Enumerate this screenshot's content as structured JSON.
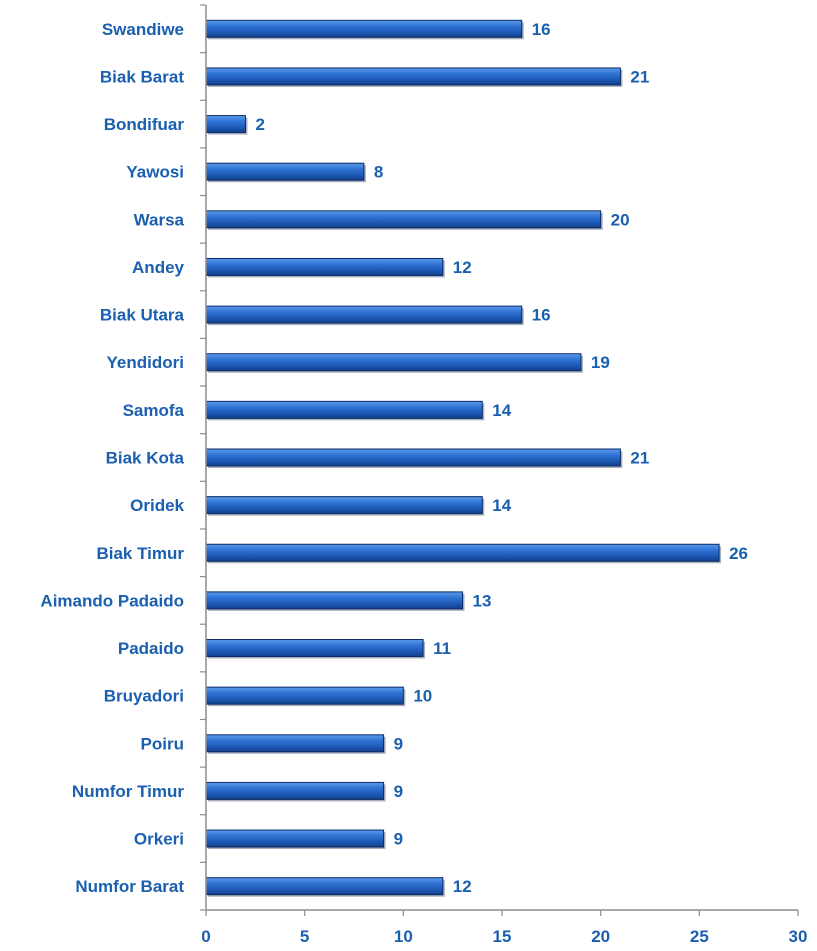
{
  "chart_data": {
    "type": "bar",
    "orientation": "horizontal",
    "title": "",
    "xlabel": "",
    "ylabel": "",
    "categories": [
      "Swandiwe",
      "Biak Barat",
      "Bondifuar",
      "Yawosi",
      "Warsa",
      "Andey",
      "Biak Utara",
      "Yendidori",
      "Samofa",
      "Biak Kota",
      "Oridek",
      "Biak Timur",
      "Aimando Padaido",
      "Padaido",
      "Bruyadori",
      "Poiru",
      "Numfor Timur",
      "Orkeri",
      "Numfor Barat"
    ],
    "values": [
      16,
      21,
      2,
      8,
      20,
      12,
      16,
      19,
      14,
      21,
      14,
      26,
      13,
      11,
      10,
      9,
      9,
      9,
      12
    ],
    "xlim": [
      0,
      30
    ],
    "x_ticks": [
      0,
      5,
      10,
      15,
      20,
      25,
      30
    ],
    "grid": false,
    "legend": "none",
    "data_labels": true
  },
  "colors": {
    "bar_fill": "#1f5fbf",
    "bar_highlight": "#4f8fe6",
    "bar_outline": "#0b2a66",
    "label_text": "#1a5fb0",
    "axis_line": "#8c8c8c"
  }
}
